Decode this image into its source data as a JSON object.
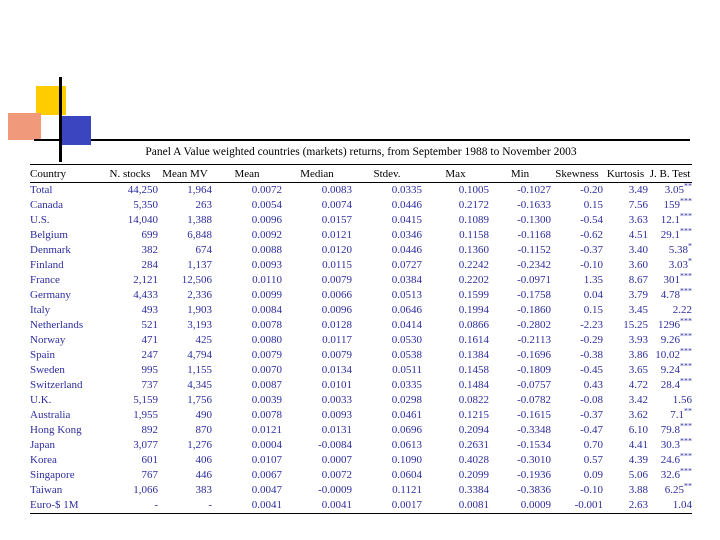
{
  "slide": {
    "title": "Panel A Value weighted countries (markets) returns, from September 1988 to November 2003"
  },
  "colors": {
    "background": "#ffffff",
    "data-text": "#2d2d9e",
    "title-text": "#000000",
    "rule": "#000000",
    "decor-yellow": "#ffcc00",
    "decor-salmon": "#f0997b",
    "decor-blue": "#3b45c0",
    "decor-line": "#000000"
  },
  "table": {
    "headers": [
      "Country",
      "N. stocks",
      "Mean MV",
      "Mean",
      "Median",
      "Stdev.",
      "Max",
      "Min",
      "Skewness",
      "Kurtosis",
      "J. B. Test"
    ],
    "rows": [
      [
        "Total",
        "44,250",
        "1,964",
        "0.0072",
        "0.0083",
        "0.0335",
        "0.1005",
        "-0.1027",
        "-0.20",
        "3.49",
        "3.05**"
      ],
      [
        "Canada",
        "5,350",
        "263",
        "0.0054",
        "0.0074",
        "0.0446",
        "0.2172",
        "-0.1633",
        "0.15",
        "7.56",
        "159***"
      ],
      [
        "U.S.",
        "14,040",
        "1,388",
        "0.0096",
        "0.0157",
        "0.0415",
        "0.1089",
        "-0.1300",
        "-0.54",
        "3.63",
        "12.1***"
      ],
      [
        "Belgium",
        "699",
        "6,848",
        "0.0092",
        "0.0121",
        "0.0346",
        "0.1158",
        "-0.1168",
        "-0.62",
        "4.51",
        "29.1***"
      ],
      [
        "Denmark",
        "382",
        "674",
        "0.0088",
        "0.0120",
        "0.0446",
        "0.1360",
        "-0.1152",
        "-0.37",
        "3.40",
        "5.38*"
      ],
      [
        "Finland",
        "284",
        "1,137",
        "0.0093",
        "0.0115",
        "0.0727",
        "0.2242",
        "-0.2342",
        "-0.10",
        "3.60",
        "3.03*"
      ],
      [
        "France",
        "2,121",
        "12,506",
        "0.0110",
        "0.0079",
        "0.0384",
        "0.2202",
        "-0.0971",
        "1.35",
        "8.67",
        "301***"
      ],
      [
        "Germany",
        "4,433",
        "2,336",
        "0.0099",
        "0.0066",
        "0.0513",
        "0.1599",
        "-0.1758",
        "0.04",
        "3.79",
        "4.78***"
      ],
      [
        "Italy",
        "493",
        "1,903",
        "0.0084",
        "0.0096",
        "0.0646",
        "0.1994",
        "-0.1860",
        "0.15",
        "3.45",
        "2.22"
      ],
      [
        "Netherlands",
        "521",
        "3,193",
        "0.0078",
        "0.0128",
        "0.0414",
        "0.0866",
        "-0.2802",
        "-2.23",
        "15.25",
        "1296***"
      ],
      [
        "Norway",
        "471",
        "425",
        "0.0080",
        "0.0117",
        "0.0530",
        "0.1614",
        "-0.2113",
        "-0.29",
        "3.93",
        "9.26***"
      ],
      [
        "Spain",
        "247",
        "4,794",
        "0.0079",
        "0.0079",
        "0.0538",
        "0.1384",
        "-0.1696",
        "-0.38",
        "3.86",
        "10.02***"
      ],
      [
        "Sweden",
        "995",
        "1,155",
        "0.0070",
        "0.0134",
        "0.0511",
        "0.1458",
        "-0.1809",
        "-0.45",
        "3.65",
        "9.24***"
      ],
      [
        "Switzerland",
        "737",
        "4,345",
        "0.0087",
        "0.0101",
        "0.0335",
        "0.1484",
        "-0.0757",
        "0.43",
        "4.72",
        "28.4***"
      ],
      [
        "U.K.",
        "5,159",
        "1,756",
        "0.0039",
        "0.0033",
        "0.0298",
        "0.0822",
        "-0.0782",
        "-0.08",
        "3.42",
        "1.56"
      ],
      [
        "Australia",
        "1,955",
        "490",
        "0.0078",
        "0.0093",
        "0.0461",
        "0.1215",
        "-0.1615",
        "-0.37",
        "3.62",
        "7.1**"
      ],
      [
        "Hong Kong",
        "892",
        "870",
        "0.0121",
        "0.0131",
        "0.0696",
        "0.2094",
        "-0.3348",
        "-0.47",
        "6.10",
        "79.8***"
      ],
      [
        "Japan",
        "3,077",
        "1,276",
        "0.0004",
        "-0.0084",
        "0.0613",
        "0.2631",
        "-0.1534",
        "0.70",
        "4.41",
        "30.3***"
      ],
      [
        "Korea",
        "601",
        "406",
        "0.0107",
        "0.0007",
        "0.1090",
        "0.4028",
        "-0.3010",
        "0.57",
        "4.39",
        "24.6***"
      ],
      [
        "Singapore",
        "767",
        "446",
        "0.0067",
        "0.0072",
        "0.0604",
        "0.2099",
        "-0.1936",
        "0.09",
        "5.06",
        "32.6***"
      ],
      [
        "Taiwan",
        "1,066",
        "383",
        "0.0047",
        "-0.0009",
        "0.1121",
        "0.3384",
        "-0.3836",
        "-0.10",
        "3.88",
        "6.25**"
      ],
      [
        "Euro-$ 1M",
        "-",
        "-",
        "0.0041",
        "0.0041",
        "0.0017",
        "0.0081",
        "0.0009",
        "-0.001",
        "2.63",
        "1.04"
      ]
    ]
  }
}
